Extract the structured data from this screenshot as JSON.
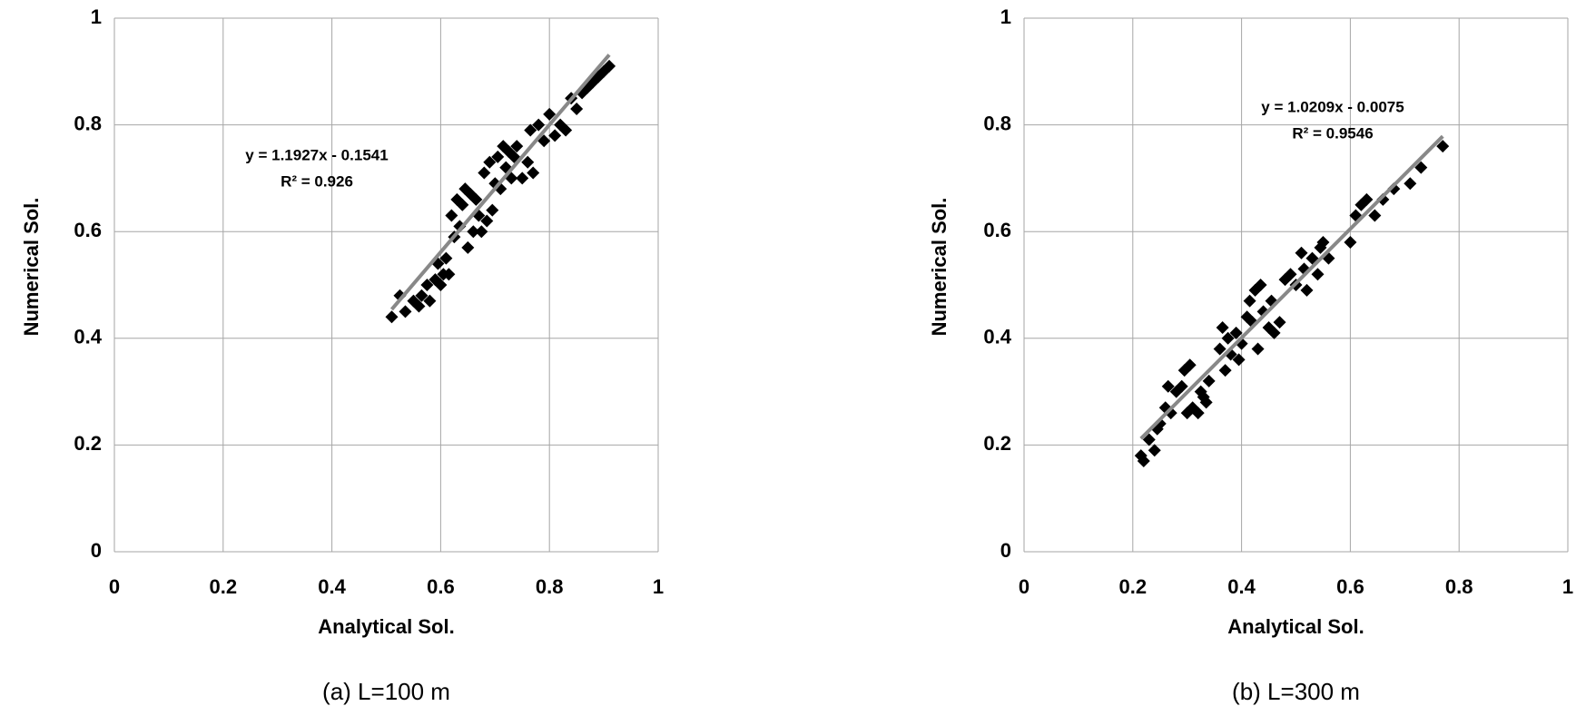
{
  "chart_data": [
    {
      "type": "scatter",
      "xlabel": "Analytical Sol.",
      "ylabel": "Numerical Sol.",
      "caption": "(a) L=100 m",
      "xlim": [
        0,
        1
      ],
      "ylim": [
        0,
        1
      ],
      "xticks": [
        0,
        0.2,
        0.4,
        0.6,
        0.8,
        1
      ],
      "yticks": [
        0,
        0.2,
        0.4,
        0.6,
        0.8,
        1
      ],
      "grid": true,
      "color": "#000000",
      "x": [
        0.51,
        0.525,
        0.535,
        0.55,
        0.56,
        0.565,
        0.575,
        0.58,
        0.59,
        0.595,
        0.6,
        0.605,
        0.61,
        0.615,
        0.62,
        0.625,
        0.63,
        0.635,
        0.64,
        0.645,
        0.65,
        0.655,
        0.66,
        0.665,
        0.67,
        0.675,
        0.68,
        0.685,
        0.69,
        0.695,
        0.7,
        0.705,
        0.71,
        0.715,
        0.72,
        0.725,
        0.73,
        0.735,
        0.74,
        0.75,
        0.76,
        0.765,
        0.77,
        0.78,
        0.79,
        0.8,
        0.81,
        0.82,
        0.83,
        0.84,
        0.85,
        0.86,
        0.87,
        0.88,
        0.89,
        0.9,
        0.91
      ],
      "y": [
        0.44,
        0.48,
        0.45,
        0.47,
        0.46,
        0.48,
        0.5,
        0.47,
        0.51,
        0.54,
        0.5,
        0.52,
        0.55,
        0.52,
        0.63,
        0.59,
        0.66,
        0.61,
        0.65,
        0.68,
        0.57,
        0.67,
        0.6,
        0.66,
        0.63,
        0.6,
        0.71,
        0.62,
        0.73,
        0.64,
        0.69,
        0.74,
        0.68,
        0.76,
        0.72,
        0.75,
        0.7,
        0.74,
        0.76,
        0.7,
        0.73,
        0.79,
        0.71,
        0.8,
        0.77,
        0.82,
        0.78,
        0.8,
        0.79,
        0.85,
        0.83,
        0.86,
        0.87,
        0.88,
        0.89,
        0.9,
        0.91
      ],
      "trendline": {
        "label": "y = 1.1927x - 0.1541",
        "r2_label": "R² = 0.926",
        "slope": 1.1927,
        "intercept": -0.1541,
        "color": "#888888"
      }
    },
    {
      "type": "scatter",
      "xlabel": "Analytical Sol.",
      "ylabel": "Numerical Sol.",
      "caption": "(b) L=300 m",
      "xlim": [
        0,
        1
      ],
      "ylim": [
        0,
        1
      ],
      "xticks": [
        0,
        0.2,
        0.4,
        0.6,
        0.8,
        1
      ],
      "yticks": [
        0,
        0.2,
        0.4,
        0.6,
        0.8,
        1
      ],
      "grid": true,
      "color": "#000000",
      "x": [
        0.215,
        0.22,
        0.23,
        0.24,
        0.245,
        0.25,
        0.26,
        0.265,
        0.27,
        0.28,
        0.29,
        0.295,
        0.3,
        0.305,
        0.31,
        0.32,
        0.325,
        0.33,
        0.335,
        0.34,
        0.36,
        0.365,
        0.37,
        0.375,
        0.38,
        0.39,
        0.395,
        0.4,
        0.41,
        0.415,
        0.42,
        0.425,
        0.43,
        0.435,
        0.44,
        0.45,
        0.455,
        0.46,
        0.47,
        0.48,
        0.49,
        0.5,
        0.51,
        0.515,
        0.52,
        0.53,
        0.54,
        0.545,
        0.55,
        0.56,
        0.6,
        0.61,
        0.62,
        0.63,
        0.645,
        0.66,
        0.68,
        0.71,
        0.73,
        0.77
      ],
      "y": [
        0.18,
        0.17,
        0.21,
        0.19,
        0.23,
        0.24,
        0.27,
        0.31,
        0.26,
        0.3,
        0.31,
        0.34,
        0.26,
        0.35,
        0.27,
        0.26,
        0.3,
        0.29,
        0.28,
        0.32,
        0.38,
        0.42,
        0.34,
        0.4,
        0.37,
        0.41,
        0.36,
        0.39,
        0.44,
        0.47,
        0.43,
        0.49,
        0.38,
        0.5,
        0.45,
        0.42,
        0.47,
        0.41,
        0.43,
        0.51,
        0.52,
        0.5,
        0.56,
        0.53,
        0.49,
        0.55,
        0.52,
        0.57,
        0.58,
        0.55,
        0.58,
        0.63,
        0.65,
        0.66,
        0.63,
        0.66,
        0.68,
        0.69,
        0.72,
        0.76
      ],
      "trendline": {
        "label": "y = 1.0209x - 0.0075",
        "r2_label": "R² = 0.9546",
        "slope": 1.0209,
        "intercept": -0.0075,
        "color": "#888888"
      }
    }
  ]
}
